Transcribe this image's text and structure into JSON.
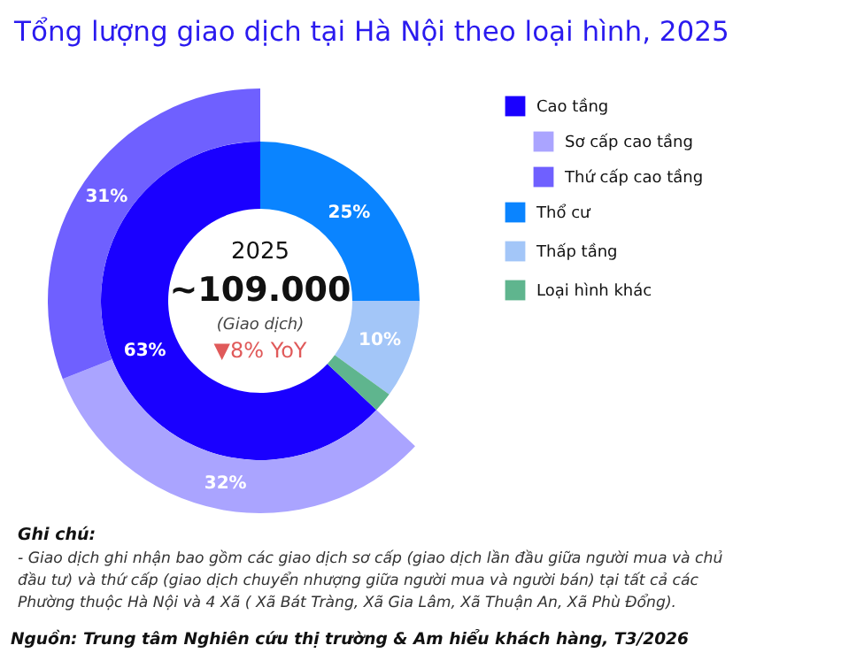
{
  "chart_data": {
    "type": "donut",
    "title": "Tổng lượng giao dịch tại Hà Nội theo loại hình, 2025",
    "categories": [
      "Cao tầng",
      "Sơ cấp cao tầng",
      "Thứ cấp cao tầng",
      "Thổ cư",
      "Thấp tầng",
      "Loại hình khác"
    ],
    "colors": [
      "#1a00ff",
      "#aaa4ff",
      "#6f60ff",
      "#0a84ff",
      "#a3c6f8",
      "#5fb58e"
    ],
    "series": [
      {
        "values": [
          63,
          null,
          null,
          25,
          10,
          2
        ],
        "value_labels": [
          "63%",
          null,
          null,
          "25%",
          "10%",
          null
        ]
      },
      {
        "values": [
          null,
          32,
          31,
          null,
          null,
          null
        ],
        "value_labels": [
          null,
          "32%",
          "31%",
          null,
          null,
          null
        ]
      }
    ],
    "legend": "right",
    "annotations": [
      "2025",
      "~109.000",
      "(Giao dịch)",
      "▼8% YoY",
      "Ghi chú:",
      "- Giao dịch ghi nhận bao gồm các giao dịch sơ cấp (giao dịch lần đầu giữa người mua và chủ đầu tư) và thứ cấp (giao dịch chuyển nhượng giữa người mua và người bán) tại tất cả các Phường thuộc Hà Nội và 4 Xã ( Xã Bát Tràng, Xã Gia Lâm, Xã Thuận An, Xã Phù Đổng).",
      "Nguồn: Trung tâm Nghiên cứu thị trường & Am hiểu khách hàng, T3/2026"
    ]
  }
}
